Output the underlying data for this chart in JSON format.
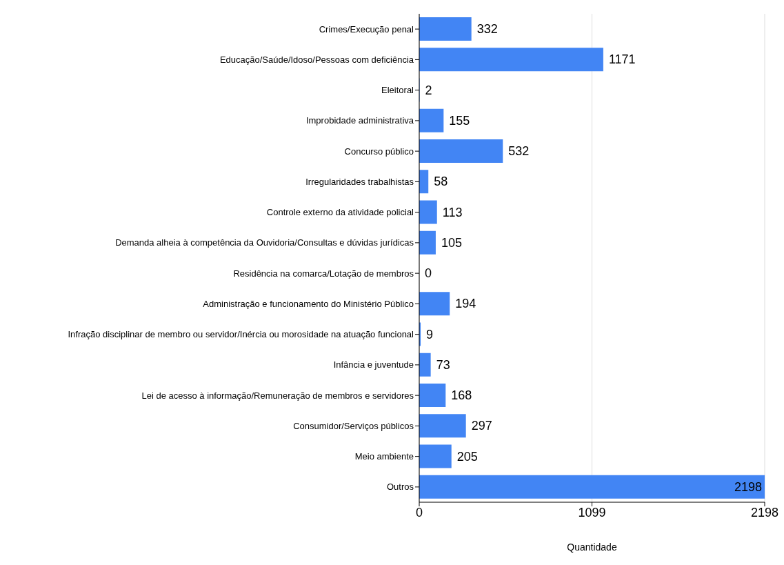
{
  "chart_data": {
    "type": "bar",
    "orientation": "horizontal",
    "xlabel": "Quantidade",
    "categories": [
      "Crimes/Execução penal",
      "Educação/Saúde/Idoso/Pessoas com deficiência",
      "Eleitoral",
      "Improbidade administrativa",
      "Concurso público",
      "Irregularidades trabalhistas",
      "Controle externo da atividade policial",
      "Demanda alheia à competência da Ouvidoria/Consultas e dúvidas jurídicas",
      "Residência na comarca/Lotação de membros",
      "Administração e funcionamento do Ministério Público",
      "Infração disciplinar de membro ou servidor/Inércia ou morosidade na atuação funcional",
      "Infância e juventude",
      "Lei de acesso à informação/Remuneração de membros e servidores",
      "Consumidor/Serviços públicos",
      "Meio ambiente",
      "Outros"
    ],
    "values": [
      332,
      1171,
      2,
      155,
      532,
      58,
      113,
      105,
      0,
      194,
      9,
      73,
      168,
      297,
      205,
      2198
    ],
    "color": "#4285f4",
    "xlim": [
      0,
      2198
    ],
    "xticks": [
      0,
      1099,
      2198
    ],
    "grid": "x",
    "data_labels": true
  }
}
